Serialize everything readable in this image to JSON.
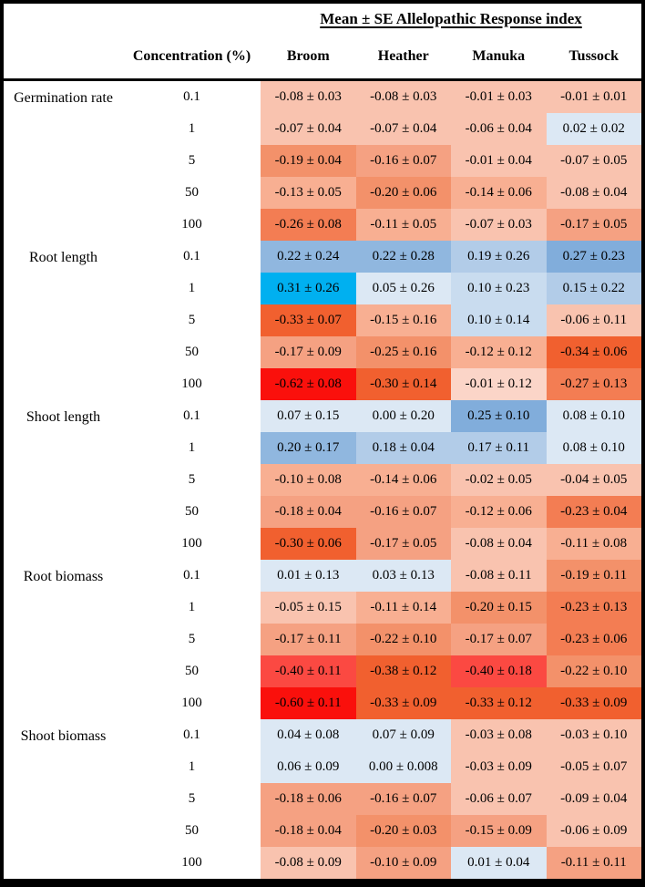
{
  "header": {
    "title": "Mean ± SE Allelopathic Response index",
    "concentration_label": "Concentration (%)"
  },
  "chart_data": {
    "type": "heatmap",
    "title": "Mean ± SE Allelopathic Response index",
    "row_groups": [
      "Germination rate",
      "Root length",
      "Shoot length",
      "Root biomass",
      "Shoot biomass"
    ],
    "concentrations_pct": [
      0.1,
      1,
      5,
      50,
      100
    ],
    "columns": [
      "Broom",
      "Heather",
      "Manuka",
      "Tussock"
    ],
    "color_scale": {
      "strong_negative": "#FA100C",
      "neutral": "#FFFFFF",
      "strong_positive": "#00B0F0"
    },
    "rows": [
      {
        "group": "Germination rate",
        "concentration": "0.1",
        "cells": [
          {
            "label": "-0.08 ± 0.03",
            "value": -0.08,
            "se": 0.03,
            "bg": "#F9C3AF"
          },
          {
            "label": "-0.08 ± 0.03",
            "value": -0.08,
            "se": 0.03,
            "bg": "#F9C3AF"
          },
          {
            "label": "-0.01 ± 0.03",
            "value": -0.01,
            "se": 0.03,
            "bg": "#F9C3AF"
          },
          {
            "label": "-0.01 ± 0.01",
            "value": -0.01,
            "se": 0.01,
            "bg": "#F9C3AF"
          }
        ]
      },
      {
        "group": "Germination rate",
        "concentration": "1",
        "cells": [
          {
            "label": "-0.07 ± 0.04",
            "value": -0.07,
            "se": 0.04,
            "bg": "#F9C3AF"
          },
          {
            "label": "-0.07 ± 0.04",
            "value": -0.07,
            "se": 0.04,
            "bg": "#F9C3AF"
          },
          {
            "label": "-0.06 ± 0.04",
            "value": -0.06,
            "se": 0.04,
            "bg": "#F9C3AF"
          },
          {
            "label": "0.02 ± 0.02",
            "value": 0.02,
            "se": 0.02,
            "bg": "#DCE8F4"
          }
        ]
      },
      {
        "group": "Germination rate",
        "concentration": "5",
        "cells": [
          {
            "label": "-0.19 ± 0.04",
            "value": -0.19,
            "se": 0.04,
            "bg": "#F3916A"
          },
          {
            "label": "-0.16 ± 0.07",
            "value": -0.16,
            "se": 0.07,
            "bg": "#F5A182"
          },
          {
            "label": "-0.01 ± 0.04",
            "value": -0.01,
            "se": 0.04,
            "bg": "#F9C3AF"
          },
          {
            "label": "-0.07 ± 0.05",
            "value": -0.07,
            "se": 0.05,
            "bg": "#F9C3AF"
          }
        ]
      },
      {
        "group": "Germination rate",
        "concentration": "50",
        "cells": [
          {
            "label": "-0.13 ± 0.05",
            "value": -0.13,
            "se": 0.05,
            "bg": "#F8AF92"
          },
          {
            "label": "-0.20 ± 0.06",
            "value": -0.2,
            "se": 0.06,
            "bg": "#F3916A"
          },
          {
            "label": "-0.14 ± 0.06",
            "value": -0.14,
            "se": 0.06,
            "bg": "#F8AF92"
          },
          {
            "label": "-0.08 ± 0.04",
            "value": -0.08,
            "se": 0.04,
            "bg": "#F9C3AF"
          }
        ]
      },
      {
        "group": "Germination rate",
        "concentration": "100",
        "cells": [
          {
            "label": "-0.26 ± 0.08",
            "value": -0.26,
            "se": 0.08,
            "bg": "#F37D53"
          },
          {
            "label": "-0.11 ± 0.05",
            "value": -0.11,
            "se": 0.05,
            "bg": "#F8AF92"
          },
          {
            "label": "-0.07 ± 0.03",
            "value": -0.07,
            "se": 0.03,
            "bg": "#F9C3AF"
          },
          {
            "label": "-0.17 ± 0.05",
            "value": -0.17,
            "se": 0.05,
            "bg": "#F5A182"
          }
        ]
      },
      {
        "group": "Root length",
        "concentration": "0.1",
        "cells": [
          {
            "label": "0.22 ± 0.24",
            "value": 0.22,
            "se": 0.24,
            "bg": "#90B7DF"
          },
          {
            "label": "0.22 ± 0.28",
            "value": 0.22,
            "se": 0.28,
            "bg": "#90B7DF"
          },
          {
            "label": "0.19 ± 0.26",
            "value": 0.19,
            "se": 0.26,
            "bg": "#B2CCE8"
          },
          {
            "label": "0.27 ± 0.23",
            "value": 0.27,
            "se": 0.23,
            "bg": "#81ADDB"
          }
        ]
      },
      {
        "group": "Root length",
        "concentration": "1",
        "cells": [
          {
            "label": "0.31 ± 0.26",
            "value": 0.31,
            "se": 0.26,
            "bg": "#00B0F0"
          },
          {
            "label": "0.05 ± 0.26",
            "value": 0.05,
            "se": 0.26,
            "bg": "#DCE8F4"
          },
          {
            "label": "0.10 ± 0.23",
            "value": 0.1,
            "se": 0.23,
            "bg": "#C9DCEF"
          },
          {
            "label": "0.15 ± 0.22",
            "value": 0.15,
            "se": 0.22,
            "bg": "#B2CCE8"
          }
        ]
      },
      {
        "group": "Root length",
        "concentration": "5",
        "cells": [
          {
            "label": "-0.33 ± 0.07",
            "value": -0.33,
            "se": 0.07,
            "bg": "#F1602F"
          },
          {
            "label": "-0.15 ± 0.16",
            "value": -0.15,
            "se": 0.16,
            "bg": "#F8AF92"
          },
          {
            "label": "0.10 ± 0.14",
            "value": 0.1,
            "se": 0.14,
            "bg": "#C9DCEF"
          },
          {
            "label": "-0.06 ± 0.11",
            "value": -0.06,
            "se": 0.11,
            "bg": "#F9C3AF"
          }
        ]
      },
      {
        "group": "Root length",
        "concentration": "50",
        "cells": [
          {
            "label": "-0.17 ± 0.09",
            "value": -0.17,
            "se": 0.09,
            "bg": "#F5A182"
          },
          {
            "label": "-0.25 ± 0.16",
            "value": -0.25,
            "se": 0.16,
            "bg": "#F3916A"
          },
          {
            "label": "-0.12 ± 0.12",
            "value": -0.12,
            "se": 0.12,
            "bg": "#F8AF92"
          },
          {
            "label": "-0.34 ± 0.06",
            "value": -0.34,
            "se": 0.06,
            "bg": "#F1602F"
          }
        ]
      },
      {
        "group": "Root length",
        "concentration": "100",
        "cells": [
          {
            "label": "-0.62 ± 0.08",
            "value": -0.62,
            "se": 0.08,
            "bg": "#FA100C"
          },
          {
            "label": "-0.30 ± 0.14",
            "value": -0.3,
            "se": 0.14,
            "bg": "#F1602F"
          },
          {
            "label": "-0.01 ± 0.12",
            "value": -0.01,
            "se": 0.12,
            "bg": "#FBD5C8"
          },
          {
            "label": "-0.27 ± 0.13",
            "value": -0.27,
            "se": 0.13,
            "bg": "#F37D53"
          }
        ]
      },
      {
        "group": "Shoot length",
        "concentration": "0.1",
        "cells": [
          {
            "label": "0.07 ± 0.15",
            "value": 0.07,
            "se": 0.15,
            "bg": "#DCE8F4"
          },
          {
            "label": "0.00 ± 0.20",
            "value": 0.0,
            "se": 0.2,
            "bg": "#DCE8F4"
          },
          {
            "label": "0.25 ± 0.10",
            "value": 0.25,
            "se": 0.1,
            "bg": "#81ADDB"
          },
          {
            "label": "0.08 ± 0.10",
            "value": 0.08,
            "se": 0.1,
            "bg": "#DCE8F4"
          }
        ]
      },
      {
        "group": "Shoot length",
        "concentration": "1",
        "cells": [
          {
            "label": "0.20 ± 0.17",
            "value": 0.2,
            "se": 0.17,
            "bg": "#90B7DF"
          },
          {
            "label": "0.18 ± 0.04",
            "value": 0.18,
            "se": 0.04,
            "bg": "#B2CCE8"
          },
          {
            "label": "0.17 ± 0.11",
            "value": 0.17,
            "se": 0.11,
            "bg": "#B2CCE8"
          },
          {
            "label": "0.08 ± 0.10",
            "value": 0.08,
            "se": 0.1,
            "bg": "#DCE8F4"
          }
        ]
      },
      {
        "group": "Shoot length",
        "concentration": "5",
        "cells": [
          {
            "label": "-0.10 ± 0.08",
            "value": -0.1,
            "se": 0.08,
            "bg": "#F8AF92"
          },
          {
            "label": "-0.14 ± 0.06",
            "value": -0.14,
            "se": 0.06,
            "bg": "#F8AF92"
          },
          {
            "label": "-0.02 ± 0.05",
            "value": -0.02,
            "se": 0.05,
            "bg": "#F9C3AF"
          },
          {
            "label": "-0.04 ± 0.05",
            "value": -0.04,
            "se": 0.05,
            "bg": "#F9C3AF"
          }
        ]
      },
      {
        "group": "Shoot length",
        "concentration": "50",
        "cells": [
          {
            "label": "-0.18 ± 0.04",
            "value": -0.18,
            "se": 0.04,
            "bg": "#F5A182"
          },
          {
            "label": "-0.16 ± 0.07",
            "value": -0.16,
            "se": 0.07,
            "bg": "#F5A182"
          },
          {
            "label": "-0.12 ± 0.06",
            "value": -0.12,
            "se": 0.06,
            "bg": "#F8AF92"
          },
          {
            "label": "-0.23 ± 0.04",
            "value": -0.23,
            "se": 0.04,
            "bg": "#F37D53"
          }
        ]
      },
      {
        "group": "Shoot length",
        "concentration": "100",
        "cells": [
          {
            "label": "-0.30 ± 0.06",
            "value": -0.3,
            "se": 0.06,
            "bg": "#F1602F"
          },
          {
            "label": "-0.17 ± 0.05",
            "value": -0.17,
            "se": 0.05,
            "bg": "#F5A182"
          },
          {
            "label": "-0.08 ± 0.04",
            "value": -0.08,
            "se": 0.04,
            "bg": "#F9C3AF"
          },
          {
            "label": "-0.11 ± 0.08",
            "value": -0.11,
            "se": 0.08,
            "bg": "#F8AF92"
          }
        ]
      },
      {
        "group": "Root biomass",
        "concentration": "0.1",
        "cells": [
          {
            "label": "0.01 ± 0.13",
            "value": 0.01,
            "se": 0.13,
            "bg": "#DCE8F4"
          },
          {
            "label": "0.03 ± 0.13",
            "value": 0.03,
            "se": 0.13,
            "bg": "#DCE8F4"
          },
          {
            "label": "-0.08 ± 0.11",
            "value": -0.08,
            "se": 0.11,
            "bg": "#F9C3AF"
          },
          {
            "label": "-0.19 ± 0.11",
            "value": -0.19,
            "se": 0.11,
            "bg": "#F3916A"
          }
        ]
      },
      {
        "group": "Root biomass",
        "concentration": "1",
        "cells": [
          {
            "label": "-0.05 ± 0.15",
            "value": -0.05,
            "se": 0.15,
            "bg": "#F9C3AF"
          },
          {
            "label": "-0.11 ± 0.14",
            "value": -0.11,
            "se": 0.14,
            "bg": "#F8AF92"
          },
          {
            "label": "-0.20 ± 0.15",
            "value": -0.2,
            "se": 0.15,
            "bg": "#F3916A"
          },
          {
            "label": "-0.23 ± 0.13",
            "value": -0.23,
            "se": 0.13,
            "bg": "#F37D53"
          }
        ]
      },
      {
        "group": "Root biomass",
        "concentration": "5",
        "cells": [
          {
            "label": "-0.17 ± 0.11",
            "value": -0.17,
            "se": 0.11,
            "bg": "#F5A182"
          },
          {
            "label": "-0.22 ± 0.10",
            "value": -0.22,
            "se": 0.1,
            "bg": "#F3916A"
          },
          {
            "label": "-0.17 ± 0.07",
            "value": -0.17,
            "se": 0.07,
            "bg": "#F5A182"
          },
          {
            "label": "-0.23 ± 0.06",
            "value": -0.23,
            "se": 0.06,
            "bg": "#F37D53"
          }
        ]
      },
      {
        "group": "Root biomass",
        "concentration": "50",
        "cells": [
          {
            "label": "-0.40 ± 0.11",
            "value": -0.4,
            "se": 0.11,
            "bg": "#FB4942"
          },
          {
            "label": "-0.38 ± 0.12",
            "value": -0.38,
            "se": 0.12,
            "bg": "#F1602F"
          },
          {
            "label": "-0.40 ± 0.18",
            "value": -0.4,
            "se": 0.18,
            "bg": "#FB4942"
          },
          {
            "label": "-0.22 ± 0.10",
            "value": -0.22,
            "se": 0.1,
            "bg": "#F3916A"
          }
        ]
      },
      {
        "group": "Root biomass",
        "concentration": "100",
        "cells": [
          {
            "label": "-0.60 ± 0.11",
            "value": -0.6,
            "se": 0.11,
            "bg": "#FA100C"
          },
          {
            "label": "-0.33 ± 0.09",
            "value": -0.33,
            "se": 0.09,
            "bg": "#F1602F"
          },
          {
            "label": "-0.33 ± 0.12",
            "value": -0.33,
            "se": 0.12,
            "bg": "#F1602F"
          },
          {
            "label": "-0.33 ± 0.09",
            "value": -0.33,
            "se": 0.09,
            "bg": "#F1602F"
          }
        ]
      },
      {
        "group": "Shoot biomass",
        "concentration": "0.1",
        "cells": [
          {
            "label": "0.04 ± 0.08",
            "value": 0.04,
            "se": 0.08,
            "bg": "#DCE8F4"
          },
          {
            "label": "0.07 ± 0.09",
            "value": 0.07,
            "se": 0.09,
            "bg": "#DCE8F4"
          },
          {
            "label": "-0.03 ± 0.08",
            "value": -0.03,
            "se": 0.08,
            "bg": "#F9C3AF"
          },
          {
            "label": "-0.03 ± 0.10",
            "value": -0.03,
            "se": 0.1,
            "bg": "#F9C3AF"
          }
        ]
      },
      {
        "group": "Shoot biomass",
        "concentration": "1",
        "cells": [
          {
            "label": "0.06 ± 0.09",
            "value": 0.06,
            "se": 0.09,
            "bg": "#DCE8F4"
          },
          {
            "label": "0.00 ± 0.008",
            "value": 0.0,
            "se": 0.008,
            "bg": "#DCE8F4"
          },
          {
            "label": "-0.03 ± 0.09",
            "value": -0.03,
            "se": 0.09,
            "bg": "#F9C3AF"
          },
          {
            "label": "-0.05 ± 0.07",
            "value": -0.05,
            "se": 0.07,
            "bg": "#F9C3AF"
          }
        ]
      },
      {
        "group": "Shoot biomass",
        "concentration": "5",
        "cells": [
          {
            "label": "-0.18 ± 0.06",
            "value": -0.18,
            "se": 0.06,
            "bg": "#F5A182"
          },
          {
            "label": "-0.16 ± 0.07",
            "value": -0.16,
            "se": 0.07,
            "bg": "#F5A182"
          },
          {
            "label": "-0.06 ± 0.07",
            "value": -0.06,
            "se": 0.07,
            "bg": "#F9C3AF"
          },
          {
            "label": "-0.09 ± 0.04",
            "value": -0.09,
            "se": 0.04,
            "bg": "#F9C3AF"
          }
        ]
      },
      {
        "group": "Shoot biomass",
        "concentration": "50",
        "cells": [
          {
            "label": "-0.18 ± 0.04",
            "value": -0.18,
            "se": 0.04,
            "bg": "#F5A182"
          },
          {
            "label": "-0.20 ± 0.03",
            "value": -0.2,
            "se": 0.03,
            "bg": "#F3916A"
          },
          {
            "label": "-0.15 ± 0.09",
            "value": -0.15,
            "se": 0.09,
            "bg": "#F5A182"
          },
          {
            "label": "-0.06 ± 0.09",
            "value": -0.06,
            "se": 0.09,
            "bg": "#F9C3AF"
          }
        ]
      },
      {
        "group": "Shoot biomass",
        "concentration": "100",
        "cells": [
          {
            "label": "-0.08 ± 0.09",
            "value": -0.08,
            "se": 0.09,
            "bg": "#F9C3AF"
          },
          {
            "label": "-0.10 ± 0.09",
            "value": -0.1,
            "se": 0.09,
            "bg": "#F5A182"
          },
          {
            "label": "0.01 ± 0.04",
            "value": 0.01,
            "se": 0.04,
            "bg": "#DCE8F4"
          },
          {
            "label": "-0.11 ± 0.11",
            "value": -0.11,
            "se": 0.11,
            "bg": "#F5A182"
          }
        ]
      }
    ]
  }
}
